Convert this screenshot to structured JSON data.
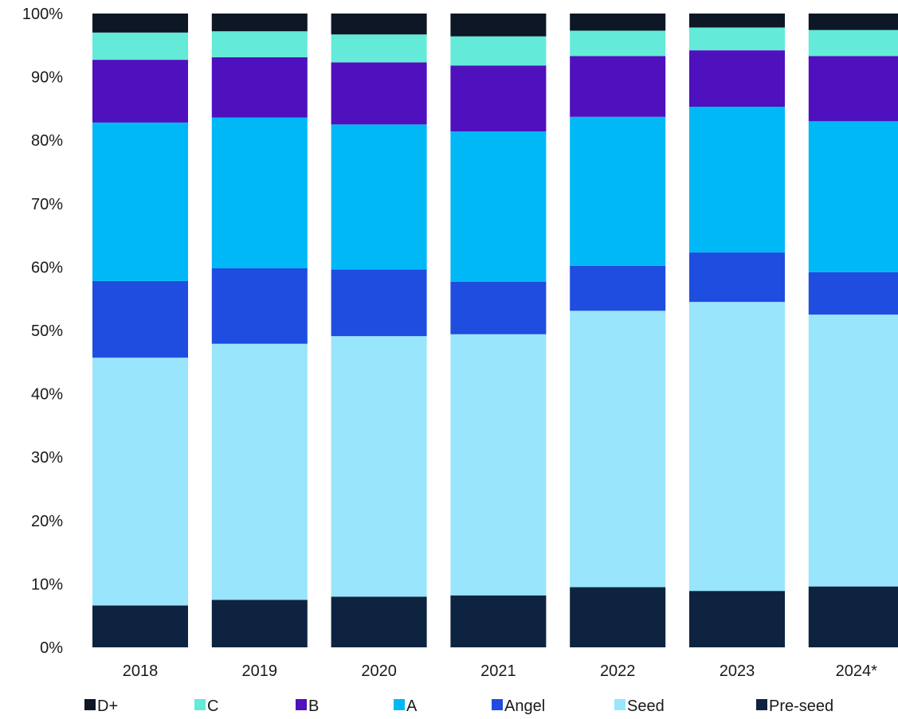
{
  "chart_data": {
    "type": "bar",
    "stacked": true,
    "categories": [
      "2018",
      "2019",
      "2020",
      "2021",
      "2022",
      "2023",
      "2024*"
    ],
    "ylim": [
      0,
      100
    ],
    "yticks": [
      "0%",
      "10%",
      "20%",
      "30%",
      "40%",
      "50%",
      "60%",
      "70%",
      "80%",
      "90%",
      "100%"
    ],
    "legend_position": "bottom",
    "grid": false,
    "series": [
      {
        "name": "Pre-seed",
        "color": "#0d2340",
        "values": [
          6.6,
          7.5,
          8.0,
          8.2,
          9.5,
          8.9,
          9.6
        ]
      },
      {
        "name": "Seed",
        "color": "#99e5fb",
        "values": [
          39.1,
          40.4,
          41.1,
          41.2,
          43.6,
          45.6,
          42.9
        ]
      },
      {
        "name": "Angel",
        "color": "#1e4de0",
        "values": [
          12.1,
          11.9,
          10.5,
          8.3,
          7.1,
          7.8,
          6.7
        ]
      },
      {
        "name": "A",
        "color": "#00b8f5",
        "values": [
          25.0,
          23.8,
          22.9,
          23.7,
          23.5,
          23.0,
          23.8
        ]
      },
      {
        "name": "B",
        "color": "#4f10be",
        "values": [
          9.9,
          9.5,
          9.8,
          10.4,
          9.6,
          8.9,
          10.3
        ]
      },
      {
        "name": "C",
        "color": "#63ead8",
        "values": [
          4.3,
          4.1,
          4.4,
          4.6,
          4.0,
          3.6,
          4.1
        ]
      },
      {
        "name": "D+",
        "color": "#0e1726",
        "values": [
          3.0,
          2.8,
          3.3,
          3.6,
          2.7,
          2.2,
          2.6
        ]
      }
    ],
    "legend_order": [
      "D+",
      "C",
      "B",
      "A",
      "Angel",
      "Seed",
      "Pre-seed"
    ]
  }
}
